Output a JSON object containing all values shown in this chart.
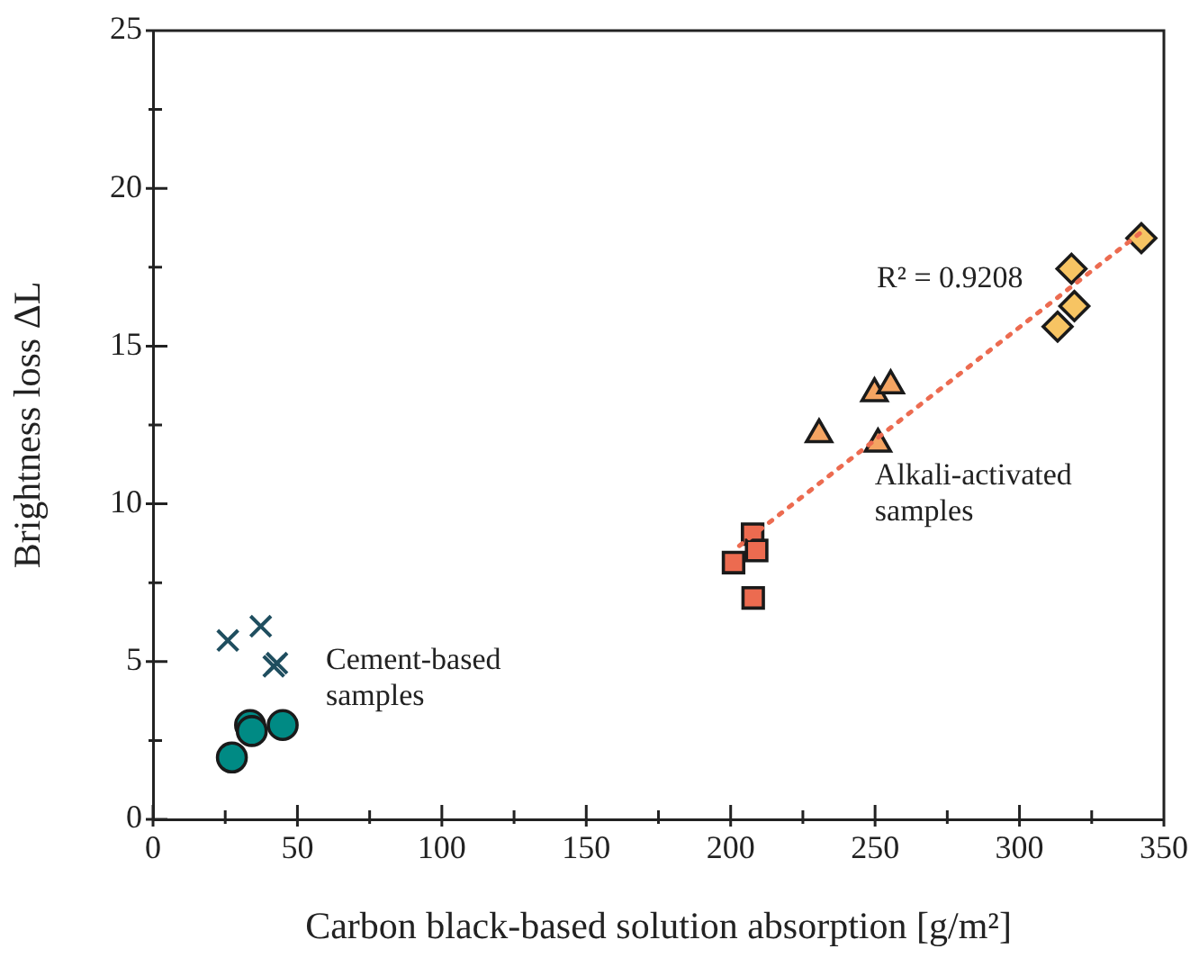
{
  "chart_data": {
    "type": "scatter",
    "xlabel": "Carbon black-based solution absorption [g/m²]",
    "ylabel": "Brightness loss ΔL",
    "xlim": [
      0,
      350
    ],
    "ylim": [
      0,
      25
    ],
    "xticks": [
      0,
      {
        "value": 25,
        "label": null
      },
      50,
      {
        "value": 75,
        "label": null
      },
      100,
      {
        "value": 125,
        "label": null
      },
      150,
      {
        "value": 175,
        "label": null
      },
      200,
      {
        "value": 225,
        "label": null
      },
      250,
      {
        "value": 275,
        "label": null
      },
      300,
      {
        "value": 325,
        "label": null
      },
      350
    ],
    "yticks": [
      0,
      {
        "value": 2.5,
        "label": null
      },
      5,
      {
        "value": 7.5,
        "label": null
      },
      10,
      {
        "value": 12.5,
        "label": null
      },
      15,
      {
        "value": 17.5,
        "label": null
      },
      20,
      {
        "value": 22.5,
        "label": null
      },
      25
    ],
    "legend": false,
    "series": [
      {
        "marker": "cross",
        "color": "#1f4e5f",
        "x": [
          25.9,
          37.3,
          42.9,
          41.8
        ],
        "values": [
          5.67,
          6.12,
          4.95,
          4.85
        ]
      },
      {
        "marker": "circle",
        "color": "#008a84",
        "x": [
          27.3,
          33.6,
          34.2,
          44.9
        ],
        "values": [
          1.96,
          2.99,
          2.8,
          2.99
        ]
      },
      {
        "marker": "square",
        "color": "#ec6b50",
        "x": [
          207.6,
          209,
          201,
          207.8
        ],
        "values": [
          9.04,
          8.52,
          8.14,
          7.02
        ]
      },
      {
        "marker": "triangle",
        "color": "#f4a462",
        "x": [
          230.6,
          249.8,
          255.4,
          251
        ],
        "values": [
          12.2,
          13.5,
          13.75,
          11.9
        ]
      },
      {
        "marker": "diamond",
        "color": "#f7c463",
        "x": [
          342.2,
          318,
          319,
          313.2
        ],
        "values": [
          18.42,
          17.45,
          16.27,
          15.62
        ]
      },
      {
        "type": "line",
        "marker": "none",
        "line_style": "dotted",
        "color": "#ec6b50",
        "x": [
          203,
          343
        ],
        "values": [
          8.67,
          18.67
        ]
      }
    ],
    "annotations": [
      "R² = 0.9208",
      "Alkali-activated\nsamples",
      "Cement-based\nsamples"
    ]
  }
}
